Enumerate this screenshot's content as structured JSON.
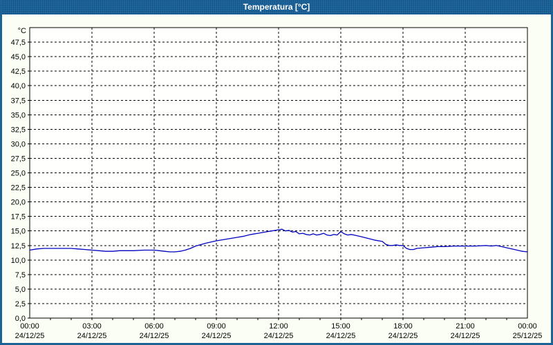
{
  "window": {
    "title": "Temperatura [°C]"
  },
  "colors": {
    "titlebar_bg": "#1e689f",
    "titlebar_text": "#ffffff",
    "window_border": "#1b6295",
    "background": "#fbfef4",
    "plot_background": "#fffffe",
    "grid": "#000000",
    "axis": "#000000",
    "label_text": "#000000",
    "line": "#0000c0"
  },
  "chart_data": {
    "type": "line",
    "title": "Temperatura [°C]",
    "y_unit_label": "°C",
    "y_axis": {
      "min": 0,
      "max": 50,
      "tick_step": 2.5,
      "decimal_separator": ",",
      "tick_values": [
        0,
        2.5,
        5,
        7.5,
        10,
        12.5,
        15,
        17.5,
        20,
        22.5,
        25,
        27.5,
        30,
        32.5,
        35,
        37.5,
        40,
        42.5,
        45,
        47.5
      ],
      "tick_labels": [
        "0,0",
        "2,5",
        "5,0",
        "7,5",
        "10,0",
        "12,5",
        "15,0",
        "17,5",
        "20,0",
        "22,5",
        "25,0",
        "27,5",
        "30,0",
        "32,5",
        "35,0",
        "37,5",
        "40,0",
        "42,5",
        "45,0",
        "47,5"
      ],
      "grid": "dashed"
    },
    "x_axis": {
      "span_hours": 24,
      "major_tick_hours": 3,
      "minor_tick_hours": 1,
      "grid": "dashed",
      "ticks": [
        {
          "hour": 0,
          "time": "00:00",
          "date": "24/12/25"
        },
        {
          "hour": 3,
          "time": "03:00",
          "date": "24/12/25"
        },
        {
          "hour": 6,
          "time": "06:00",
          "date": "24/12/25"
        },
        {
          "hour": 9,
          "time": "09:00",
          "date": "24/12/25"
        },
        {
          "hour": 12,
          "time": "12:00",
          "date": "24/12/25"
        },
        {
          "hour": 15,
          "time": "15:00",
          "date": "24/12/25"
        },
        {
          "hour": 18,
          "time": "18:00",
          "date": "24/12/25"
        },
        {
          "hour": 21,
          "time": "21:00",
          "date": "24/12/25"
        },
        {
          "hour": 24,
          "time": "00:00",
          "date": "25/12/25"
        }
      ]
    },
    "series": [
      {
        "name": "Temperatura",
        "color": "#0000c0",
        "points": [
          [
            0,
            11.7
          ],
          [
            0.33,
            11.9
          ],
          [
            0.67,
            12.0
          ],
          [
            1,
            12.0
          ],
          [
            1.5,
            12.0
          ],
          [
            2,
            12.0
          ],
          [
            2.33,
            11.9
          ],
          [
            2.67,
            11.8
          ],
          [
            3,
            11.7
          ],
          [
            3.33,
            11.6
          ],
          [
            3.67,
            11.5
          ],
          [
            4,
            11.5
          ],
          [
            4.33,
            11.6
          ],
          [
            4.67,
            11.6
          ],
          [
            5,
            11.6
          ],
          [
            5.5,
            11.7
          ],
          [
            6,
            11.7
          ],
          [
            6.25,
            11.6
          ],
          [
            6.5,
            11.5
          ],
          [
            6.75,
            11.4
          ],
          [
            7,
            11.4
          ],
          [
            7.25,
            11.5
          ],
          [
            7.5,
            11.7
          ],
          [
            7.75,
            12.0
          ],
          [
            8,
            12.4
          ],
          [
            8.5,
            12.9
          ],
          [
            9,
            13.3
          ],
          [
            9.5,
            13.6
          ],
          [
            10,
            13.9
          ],
          [
            10.33,
            14.1
          ],
          [
            10.67,
            14.4
          ],
          [
            11,
            14.6
          ],
          [
            11.33,
            14.8
          ],
          [
            11.67,
            15.0
          ],
          [
            11.83,
            15.1
          ],
          [
            12,
            15.2
          ],
          [
            12.17,
            15.3
          ],
          [
            12.33,
            15.0
          ],
          [
            12.5,
            15.1
          ],
          [
            12.67,
            14.8
          ],
          [
            12.83,
            14.9
          ],
          [
            13,
            14.5
          ],
          [
            13.17,
            14.6
          ],
          [
            13.33,
            14.4
          ],
          [
            13.5,
            14.3
          ],
          [
            13.67,
            14.5
          ],
          [
            13.83,
            14.3
          ],
          [
            14,
            14.4
          ],
          [
            14.17,
            14.6
          ],
          [
            14.33,
            14.3
          ],
          [
            14.5,
            14.2
          ],
          [
            14.67,
            14.4
          ],
          [
            14.83,
            14.3
          ],
          [
            15,
            14.9
          ],
          [
            15.17,
            14.5
          ],
          [
            15.33,
            14.3
          ],
          [
            15.5,
            14.4
          ],
          [
            15.75,
            14.2
          ],
          [
            16,
            14.0
          ],
          [
            16.33,
            13.7
          ],
          [
            16.67,
            13.4
          ],
          [
            17,
            13.2
          ],
          [
            17.17,
            12.7
          ],
          [
            17.33,
            12.5
          ],
          [
            17.5,
            12.5
          ],
          [
            17.67,
            12.6
          ],
          [
            17.83,
            12.5
          ],
          [
            18,
            12.5
          ],
          [
            18.17,
            12.0
          ],
          [
            18.33,
            11.8
          ],
          [
            18.5,
            11.8
          ],
          [
            18.67,
            12.0
          ],
          [
            19,
            12.1
          ],
          [
            19.33,
            12.2
          ],
          [
            19.67,
            12.3
          ],
          [
            20,
            12.3
          ],
          [
            20.5,
            12.4
          ],
          [
            21,
            12.4
          ],
          [
            21.5,
            12.4
          ],
          [
            22,
            12.5
          ],
          [
            22.25,
            12.4
          ],
          [
            22.5,
            12.5
          ],
          [
            22.75,
            12.3
          ],
          [
            23,
            12.1
          ],
          [
            23.25,
            11.9
          ],
          [
            23.5,
            11.7
          ],
          [
            23.75,
            11.5
          ],
          [
            24,
            11.4
          ]
        ]
      }
    ]
  }
}
